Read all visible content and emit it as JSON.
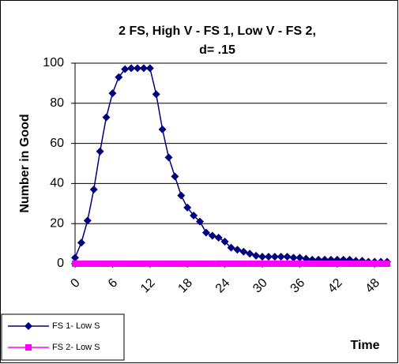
{
  "chart_data": {
    "type": "line",
    "title": [
      "2 FS, High V - FS 1, Low V - FS 2,",
      "d= .15"
    ],
    "y_label": "Number in Good",
    "x_label": "Time",
    "x": [
      0,
      1,
      2,
      3,
      4,
      5,
      6,
      7,
      8,
      9,
      10,
      11,
      12,
      13,
      14,
      15,
      16,
      17,
      18,
      19,
      20,
      21,
      22,
      23,
      24,
      25,
      26,
      27,
      28,
      29,
      30,
      31,
      32,
      33,
      34,
      35,
      36,
      37,
      38,
      39,
      40,
      41,
      42,
      43,
      44,
      45,
      46,
      47,
      48,
      49,
      50
    ],
    "series": [
      {
        "name": "FS 1- Low S",
        "color": "#000080",
        "marker": "diamond",
        "values": [
          3,
          10.5,
          21.5,
          37,
          56,
          73,
          85,
          93,
          97,
          97.5,
          97.5,
          97.5,
          97.5,
          84.5,
          67,
          53,
          43.5,
          34,
          28,
          24,
          21,
          15.5,
          14,
          13,
          11,
          8,
          7,
          6,
          5,
          4,
          3.5,
          3.5,
          3.5,
          3.5,
          3.5,
          3,
          3,
          2.5,
          2,
          2,
          2,
          2,
          2,
          2,
          2,
          1.5,
          1.5,
          1,
          1,
          1,
          1
        ]
      },
      {
        "name": "FS 2- Low S",
        "color": "#ff00ff",
        "marker": "square",
        "values": [
          0,
          0,
          0,
          0,
          0,
          0,
          0,
          0,
          0,
          0,
          0,
          0,
          0,
          0,
          0,
          0,
          0,
          0,
          0,
          0,
          0,
          0,
          0,
          0,
          0,
          0,
          0,
          0,
          0,
          0,
          0,
          0,
          0,
          0,
          0,
          0,
          0,
          0,
          0,
          0,
          0,
          0,
          0,
          0,
          0,
          0,
          0,
          0,
          0,
          0,
          0
        ]
      }
    ],
    "xlim": [
      0,
      50
    ],
    "xticks": [
      0,
      6,
      12,
      18,
      24,
      30,
      36,
      42,
      48
    ],
    "ylim": [
      0,
      100
    ],
    "yticks": [
      0,
      20,
      40,
      60,
      80,
      100
    ],
    "grid": true
  }
}
